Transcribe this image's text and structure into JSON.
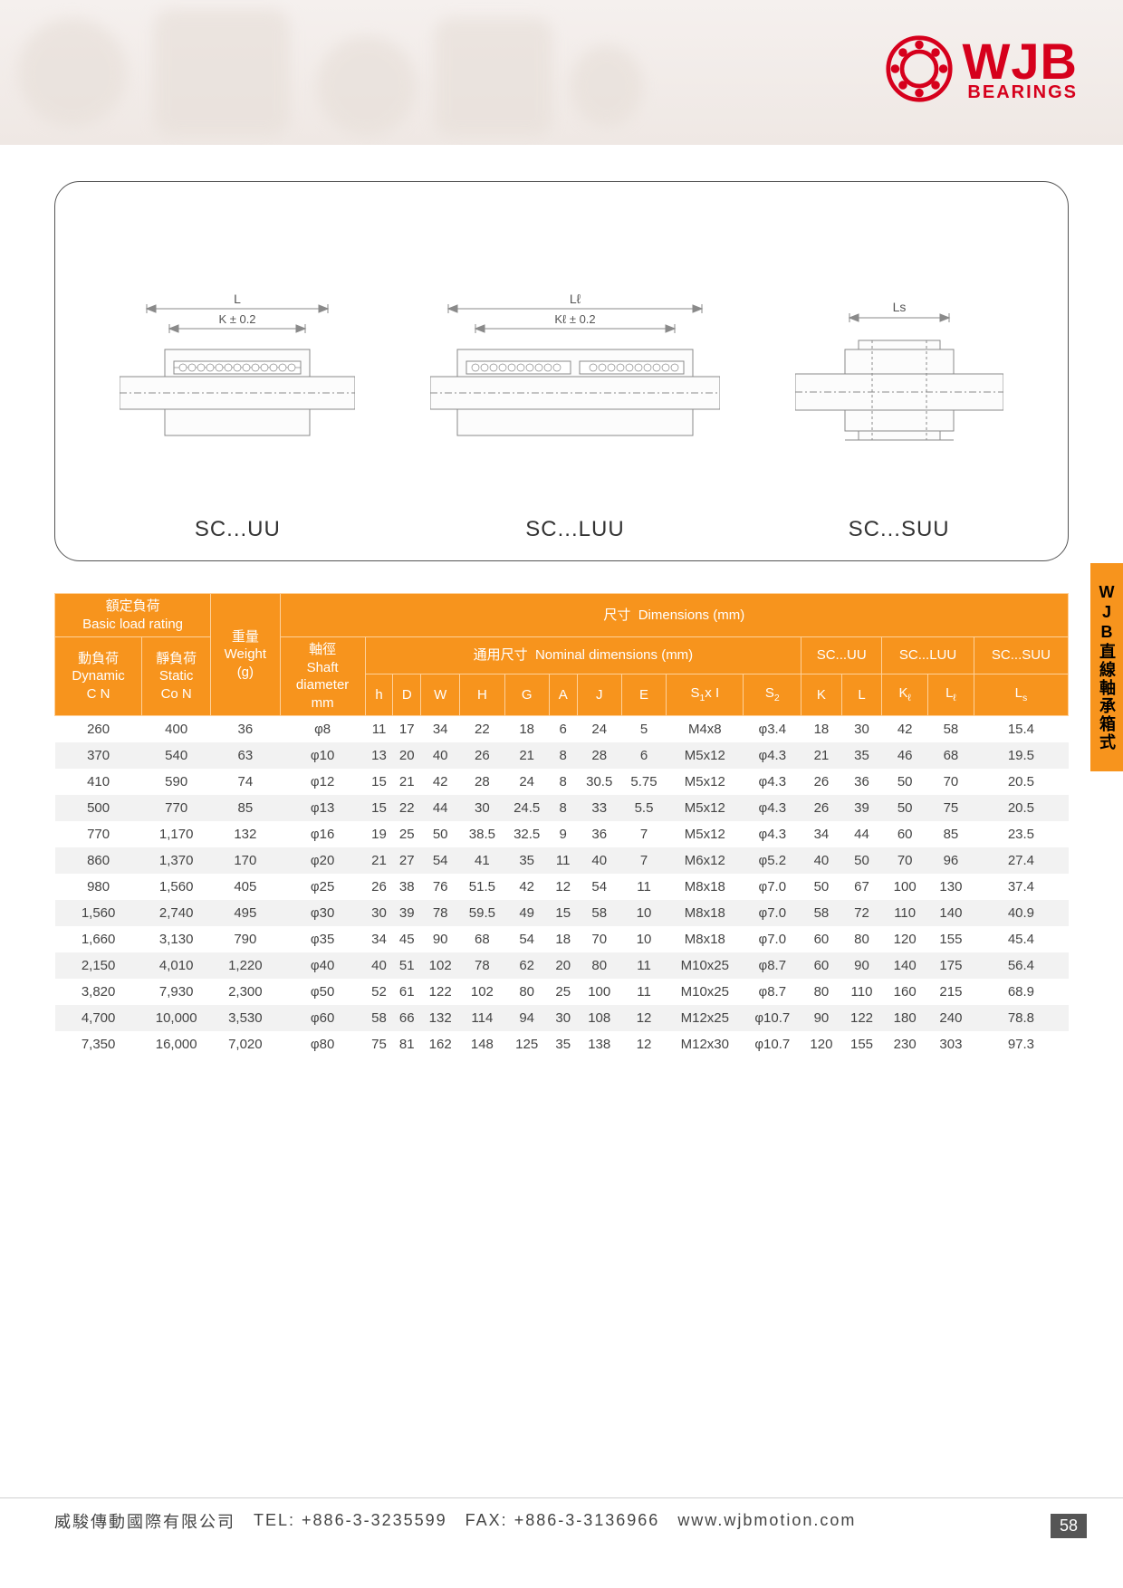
{
  "brand": {
    "name": "WJB",
    "sub": "BEARINGS",
    "color": "#d6001c"
  },
  "side_tab": "WJB直線軸承箱式",
  "diagrams": {
    "items": [
      {
        "label": "SC...UU",
        "dim_top": "L",
        "dim_sub": "K ± 0.2"
      },
      {
        "label": "SC...LUU",
        "dim_top": "Lℓ",
        "dim_sub": "Kℓ ± 0.2"
      },
      {
        "label": "SC...SUU",
        "dim_top": "Ls",
        "dim_sub": ""
      }
    ],
    "stroke": "#8a8a8a",
    "bg": "#ffffff"
  },
  "table": {
    "header": {
      "load_group_zh": "額定負荷",
      "load_group_en": "Basic load rating",
      "dyn_zh": "動負荷",
      "dyn_en": "Dynamic",
      "dyn_unit": "C N",
      "stat_zh": "靜負荷",
      "stat_en": "Static",
      "stat_unit": "Co N",
      "weight_zh": "重量",
      "weight_en": "Weight",
      "weight_unit": "(g)",
      "dims_zh": "尺寸",
      "dims_en": "Dimensions (mm)",
      "nominal_zh": "通用尺寸",
      "nominal_en": "Nominal dimensions (mm)",
      "shaft_zh": "軸徑",
      "shaft_en": "Shaft",
      "shaft_en2": "diameter",
      "shaft_unit": "mm",
      "sc_uu": "SC...UU",
      "sc_luu": "SC...LUU",
      "sc_suu": "SC...SUU",
      "cols": [
        "h",
        "D",
        "W",
        "H",
        "G",
        "A",
        "J",
        "E",
        "S₁x I",
        "S₂",
        "K",
        "L",
        "Kℓ",
        "Lℓ",
        "Ls"
      ]
    },
    "rows": [
      {
        "dyn": "260",
        "stat": "400",
        "wt": "36",
        "phi": "φ8",
        "h": "11",
        "D": "17",
        "W": "34",
        "H": "22",
        "G": "18",
        "A": "6",
        "J": "24",
        "E": "5",
        "S1I": "M4x8",
        "S2": "φ3.4",
        "K": "18",
        "L": "30",
        "Kl": "42",
        "Ll": "58",
        "Ls": "15.4"
      },
      {
        "dyn": "370",
        "stat": "540",
        "wt": "63",
        "phi": "φ10",
        "h": "13",
        "D": "20",
        "W": "40",
        "H": "26",
        "G": "21",
        "A": "8",
        "J": "28",
        "E": "6",
        "S1I": "M5x12",
        "S2": "φ4.3",
        "K": "21",
        "L": "35",
        "Kl": "46",
        "Ll": "68",
        "Ls": "19.5"
      },
      {
        "dyn": "410",
        "stat": "590",
        "wt": "74",
        "phi": "φ12",
        "h": "15",
        "D": "21",
        "W": "42",
        "H": "28",
        "G": "24",
        "A": "8",
        "J": "30.5",
        "E": "5.75",
        "S1I": "M5x12",
        "S2": "φ4.3",
        "K": "26",
        "L": "36",
        "Kl": "50",
        "Ll": "70",
        "Ls": "20.5"
      },
      {
        "dyn": "500",
        "stat": "770",
        "wt": "85",
        "phi": "φ13",
        "h": "15",
        "D": "22",
        "W": "44",
        "H": "30",
        "G": "24.5",
        "A": "8",
        "J": "33",
        "E": "5.5",
        "S1I": "M5x12",
        "S2": "φ4.3",
        "K": "26",
        "L": "39",
        "Kl": "50",
        "Ll": "75",
        "Ls": "20.5"
      },
      {
        "dyn": "770",
        "stat": "1,170",
        "wt": "132",
        "phi": "φ16",
        "h": "19",
        "D": "25",
        "W": "50",
        "H": "38.5",
        "G": "32.5",
        "A": "9",
        "J": "36",
        "E": "7",
        "S1I": "M5x12",
        "S2": "φ4.3",
        "K": "34",
        "L": "44",
        "Kl": "60",
        "Ll": "85",
        "Ls": "23.5"
      },
      {
        "dyn": "860",
        "stat": "1,370",
        "wt": "170",
        "phi": "φ20",
        "h": "21",
        "D": "27",
        "W": "54",
        "H": "41",
        "G": "35",
        "A": "11",
        "J": "40",
        "E": "7",
        "S1I": "M6x12",
        "S2": "φ5.2",
        "K": "40",
        "L": "50",
        "Kl": "70",
        "Ll": "96",
        "Ls": "27.4"
      },
      {
        "dyn": "980",
        "stat": "1,560",
        "wt": "405",
        "phi": "φ25",
        "h": "26",
        "D": "38",
        "W": "76",
        "H": "51.5",
        "G": "42",
        "A": "12",
        "J": "54",
        "E": "11",
        "S1I": "M8x18",
        "S2": "φ7.0",
        "K": "50",
        "L": "67",
        "Kl": "100",
        "Ll": "130",
        "Ls": "37.4"
      },
      {
        "dyn": "1,560",
        "stat": "2,740",
        "wt": "495",
        "phi": "φ30",
        "h": "30",
        "D": "39",
        "W": "78",
        "H": "59.5",
        "G": "49",
        "A": "15",
        "J": "58",
        "E": "10",
        "S1I": "M8x18",
        "S2": "φ7.0",
        "K": "58",
        "L": "72",
        "Kl": "110",
        "Ll": "140",
        "Ls": "40.9"
      },
      {
        "dyn": "1,660",
        "stat": "3,130",
        "wt": "790",
        "phi": "φ35",
        "h": "34",
        "D": "45",
        "W": "90",
        "H": "68",
        "G": "54",
        "A": "18",
        "J": "70",
        "E": "10",
        "S1I": "M8x18",
        "S2": "φ7.0",
        "K": "60",
        "L": "80",
        "Kl": "120",
        "Ll": "155",
        "Ls": "45.4"
      },
      {
        "dyn": "2,150",
        "stat": "4,010",
        "wt": "1,220",
        "phi": "φ40",
        "h": "40",
        "D": "51",
        "W": "102",
        "H": "78",
        "G": "62",
        "A": "20",
        "J": "80",
        "E": "11",
        "S1I": "M10x25",
        "S2": "φ8.7",
        "K": "60",
        "L": "90",
        "Kl": "140",
        "Ll": "175",
        "Ls": "56.4"
      },
      {
        "dyn": "3,820",
        "stat": "7,930",
        "wt": "2,300",
        "phi": "φ50",
        "h": "52",
        "D": "61",
        "W": "122",
        "H": "102",
        "G": "80",
        "A": "25",
        "J": "100",
        "E": "11",
        "S1I": "M10x25",
        "S2": "φ8.7",
        "K": "80",
        "L": "110",
        "Kl": "160",
        "Ll": "215",
        "Ls": "68.9"
      },
      {
        "dyn": "4,700",
        "stat": "10,000",
        "wt": "3,530",
        "phi": "φ60",
        "h": "58",
        "D": "66",
        "W": "132",
        "H": "114",
        "G": "94",
        "A": "30",
        "J": "108",
        "E": "12",
        "S1I": "M12x25",
        "S2": "φ10.7",
        "K": "90",
        "L": "122",
        "Kl": "180",
        "Ll": "240",
        "Ls": "78.8"
      },
      {
        "dyn": "7,350",
        "stat": "16,000",
        "wt": "7,020",
        "phi": "φ80",
        "h": "75",
        "D": "81",
        "W": "162",
        "H": "148",
        "G": "125",
        "A": "35",
        "J": "138",
        "E": "12",
        "S1I": "M12x30",
        "S2": "φ10.7",
        "K": "120",
        "L": "155",
        "Kl": "230",
        "Ll": "303",
        "Ls": "97.3"
      }
    ]
  },
  "footer": {
    "company": "威駿傳動國際有限公司",
    "tel_label": "TEL:",
    "tel": "+886-3-3235599",
    "fax_label": "FAX:",
    "fax": "+886-3-3136966",
    "web": "www.wjbmotion.com"
  },
  "page": "58"
}
